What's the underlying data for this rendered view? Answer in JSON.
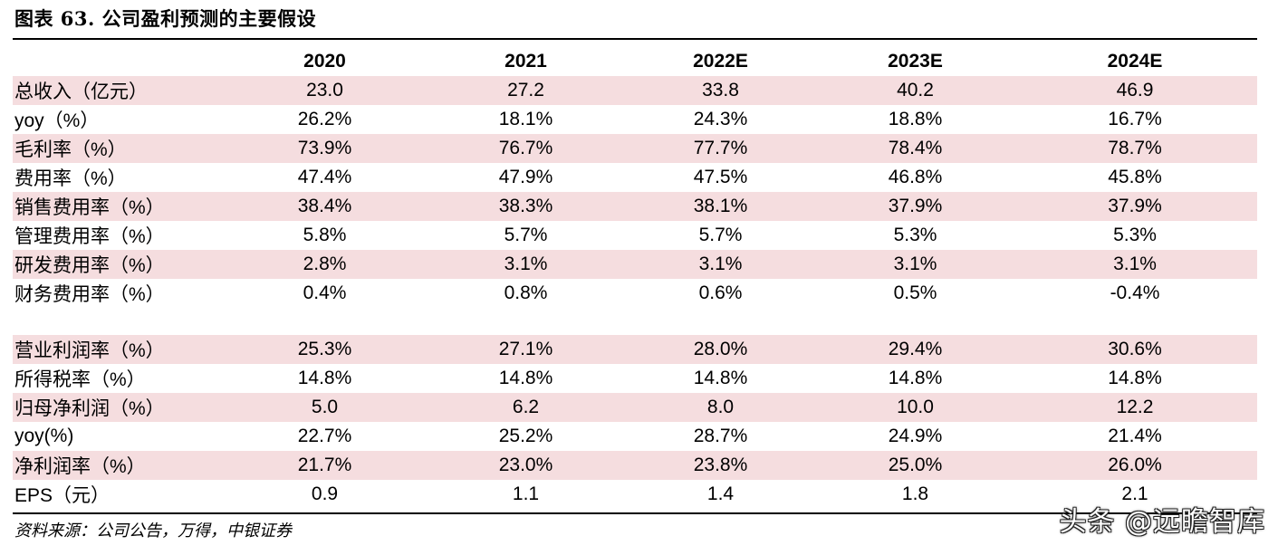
{
  "title": "图表 63. 公司盈利预测的主要假设",
  "header": [
    "",
    "2020",
    "2021",
    "2022E",
    "2023E",
    "2024E"
  ],
  "rows": [
    {
      "label": "总收入（亿元）",
      "values": [
        "23.0",
        "27.2",
        "33.8",
        "40.2",
        "46.9"
      ],
      "shaded": true
    },
    {
      "label": "yoy（%）",
      "values": [
        "26.2%",
        "18.1%",
        "24.3%",
        "18.8%",
        "16.7%"
      ],
      "shaded": false
    },
    {
      "label": "毛利率（%）",
      "values": [
        "73.9%",
        "76.7%",
        "77.7%",
        "78.4%",
        "78.7%"
      ],
      "shaded": true
    },
    {
      "label": "费用率（%）",
      "values": [
        "47.4%",
        "47.9%",
        "47.5%",
        "46.8%",
        "45.8%"
      ],
      "shaded": false
    },
    {
      "label": "销售费用率（%）",
      "values": [
        "38.4%",
        "38.3%",
        "38.1%",
        "37.9%",
        "37.9%"
      ],
      "shaded": true
    },
    {
      "label": "管理费用率（%）",
      "values": [
        "5.8%",
        "5.7%",
        "5.7%",
        "5.3%",
        "5.3%"
      ],
      "shaded": false
    },
    {
      "label": "研发费用率（%）",
      "values": [
        "2.8%",
        "3.1%",
        "3.1%",
        "3.1%",
        "3.1%"
      ],
      "shaded": true
    },
    {
      "label": "财务费用率（%）",
      "values": [
        "0.4%",
        "0.8%",
        "0.6%",
        "0.5%",
        "-0.4%"
      ],
      "shaded": false
    },
    {
      "label": "",
      "values": [
        "",
        "",
        "",
        "",
        ""
      ],
      "shaded": false,
      "gap": true
    },
    {
      "label": "营业利润率（%）",
      "values": [
        "25.3%",
        "27.1%",
        "28.0%",
        "29.4%",
        "30.6%"
      ],
      "shaded": true
    },
    {
      "label": "所得税率（%）",
      "values": [
        "14.8%",
        "14.8%",
        "14.8%",
        "14.8%",
        "14.8%"
      ],
      "shaded": false
    },
    {
      "label": "归母净利润（%）",
      "values": [
        "5.0",
        "6.2",
        "8.0",
        "10.0",
        "12.2"
      ],
      "shaded": true
    },
    {
      "label": "yoy(%)",
      "values": [
        "22.7%",
        "25.2%",
        "28.7%",
        "24.9%",
        "21.4%"
      ],
      "shaded": false
    },
    {
      "label": "净利润率（%）",
      "values": [
        "21.7%",
        "23.0%",
        "23.8%",
        "25.0%",
        "26.0%"
      ],
      "shaded": true
    },
    {
      "label": "EPS（元）",
      "values": [
        "0.9",
        "1.1",
        "1.4",
        "1.8",
        "2.1"
      ],
      "shaded": false
    }
  ],
  "source": "资料来源：公司公告，万得，中银证券",
  "watermark": "头条 @远瞻智库",
  "colors": {
    "shade": "#f5dddf",
    "rule": "#000000"
  }
}
